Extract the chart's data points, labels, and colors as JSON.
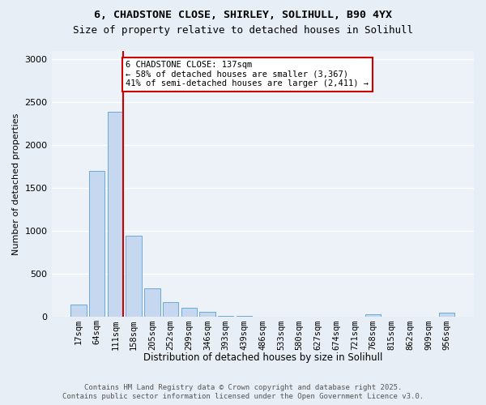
{
  "title_line1": "6, CHADSTONE CLOSE, SHIRLEY, SOLIHULL, B90 4YX",
  "title_line2": "Size of property relative to detached houses in Solihull",
  "xlabel": "Distribution of detached houses by size in Solihull",
  "ylabel": "Number of detached properties",
  "footer_line1": "Contains HM Land Registry data © Crown copyright and database right 2025.",
  "footer_line2": "Contains public sector information licensed under the Open Government Licence v3.0.",
  "bar_labels": [
    "17sqm",
    "64sqm",
    "111sqm",
    "158sqm",
    "205sqm",
    "252sqm",
    "299sqm",
    "346sqm",
    "393sqm",
    "439sqm",
    "486sqm",
    "533sqm",
    "580sqm",
    "627sqm",
    "674sqm",
    "721sqm",
    "768sqm",
    "815sqm",
    "862sqm",
    "909sqm",
    "956sqm"
  ],
  "bar_values": [
    150,
    1700,
    2390,
    950,
    330,
    175,
    105,
    65,
    15,
    10,
    8,
    5,
    5,
    5,
    4,
    4,
    30,
    3,
    3,
    3,
    55
  ],
  "bar_color": "#c5d8ef",
  "bar_edgecolor": "#6aaad4",
  "background_color": "#e8eef5",
  "plot_background": "#edf2f8",
  "grid_color": "#ffffff",
  "red_line_color": "#cc0000",
  "red_line_x": 2.425,
  "annotation_text": "6 CHADSTONE CLOSE: 137sqm\n← 58% of detached houses are smaller (3,367)\n41% of semi-detached houses are larger (2,411) →",
  "annotation_box_facecolor": "#ffffff",
  "annotation_box_edgecolor": "#cc0000",
  "ylim": [
    0,
    3100
  ],
  "yticks": [
    0,
    500,
    1000,
    1500,
    2000,
    2500,
    3000
  ]
}
